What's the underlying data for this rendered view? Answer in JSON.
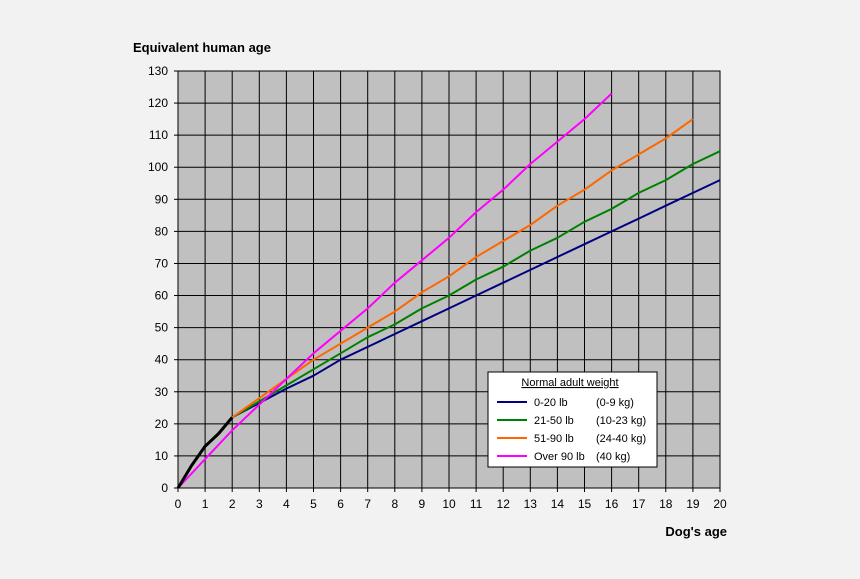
{
  "chart_data": {
    "type": "line",
    "ylabel": "Equivalent human age",
    "xlabel": "Dog's age",
    "xlim": [
      0,
      20
    ],
    "ylim": [
      0,
      130
    ],
    "x_ticks": [
      "0",
      "1",
      "2",
      "3",
      "4",
      "5",
      "6",
      "7",
      "8",
      "9",
      "10",
      "11",
      "12",
      "13",
      "14",
      "15",
      "16",
      "17",
      "18",
      "19",
      "20"
    ],
    "y_ticks": [
      "0",
      "10",
      "20",
      "30",
      "40",
      "50",
      "60",
      "70",
      "80",
      "90",
      "100",
      "110",
      "120",
      "130"
    ],
    "grid": true,
    "legend_title": "Normal adult weight",
    "legend_position": "lower-right",
    "shared": {
      "name": "",
      "color": "#000000",
      "x": [
        0,
        0.5,
        1,
        1.5,
        2
      ],
      "y": [
        0,
        7,
        13,
        17,
        22
      ]
    },
    "series": [
      {
        "name": "0-20 lb",
        "unit": "(0-9 kg)",
        "color": "#000080",
        "x": [
          2,
          3,
          4,
          5,
          6,
          7,
          8,
          9,
          10,
          11,
          12,
          13,
          14,
          15,
          16,
          17,
          18,
          19,
          20
        ],
        "y": [
          22,
          26.5,
          31,
          35,
          40,
          44,
          48,
          52,
          56,
          60,
          64,
          68,
          72,
          76,
          80,
          84,
          88,
          92,
          96
        ]
      },
      {
        "name": "21-50 lb",
        "unit": "(10-23 kg)",
        "color": "#008000",
        "x": [
          2,
          3,
          4,
          5,
          6,
          7,
          8,
          9,
          10,
          11,
          12,
          13,
          14,
          15,
          16,
          17,
          18,
          19,
          20
        ],
        "y": [
          22,
          27,
          32,
          37,
          42,
          47,
          51,
          56,
          60,
          65,
          69,
          74,
          78,
          83,
          87,
          92,
          96,
          101,
          105
        ]
      },
      {
        "name": "51-90 lb",
        "unit": "(24-40 kg)",
        "color": "#ff6600",
        "x": [
          2,
          3,
          4,
          5,
          6,
          7,
          8,
          9,
          10,
          11,
          12,
          13,
          14,
          15,
          16,
          17,
          18,
          19
        ],
        "y": [
          22,
          28,
          34,
          40,
          45,
          50,
          55,
          61,
          66,
          72,
          77,
          82,
          88,
          93,
          99,
          104,
          109,
          115
        ]
      },
      {
        "name": "Over 90 lb",
        "unit": "(40 kg)",
        "color": "#ff00ff",
        "x": [
          0,
          1,
          2,
          3,
          4,
          5,
          6,
          7,
          8,
          9,
          10,
          11,
          12,
          13,
          14,
          15,
          16
        ],
        "y": [
          0,
          9,
          18,
          26,
          34,
          42,
          49,
          56,
          64,
          71,
          78,
          86,
          93,
          101,
          108,
          115,
          123
        ]
      }
    ]
  }
}
